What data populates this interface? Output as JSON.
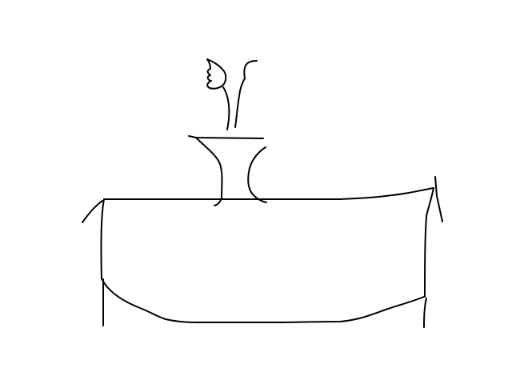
{
  "scene": {
    "description_visible_text": "",
    "ink_color": "#000000",
    "background_color": "#ffffff"
  },
  "elements": {
    "table": "table-top-and-body",
    "vase": "vase",
    "flower": "flower-with-stems"
  }
}
